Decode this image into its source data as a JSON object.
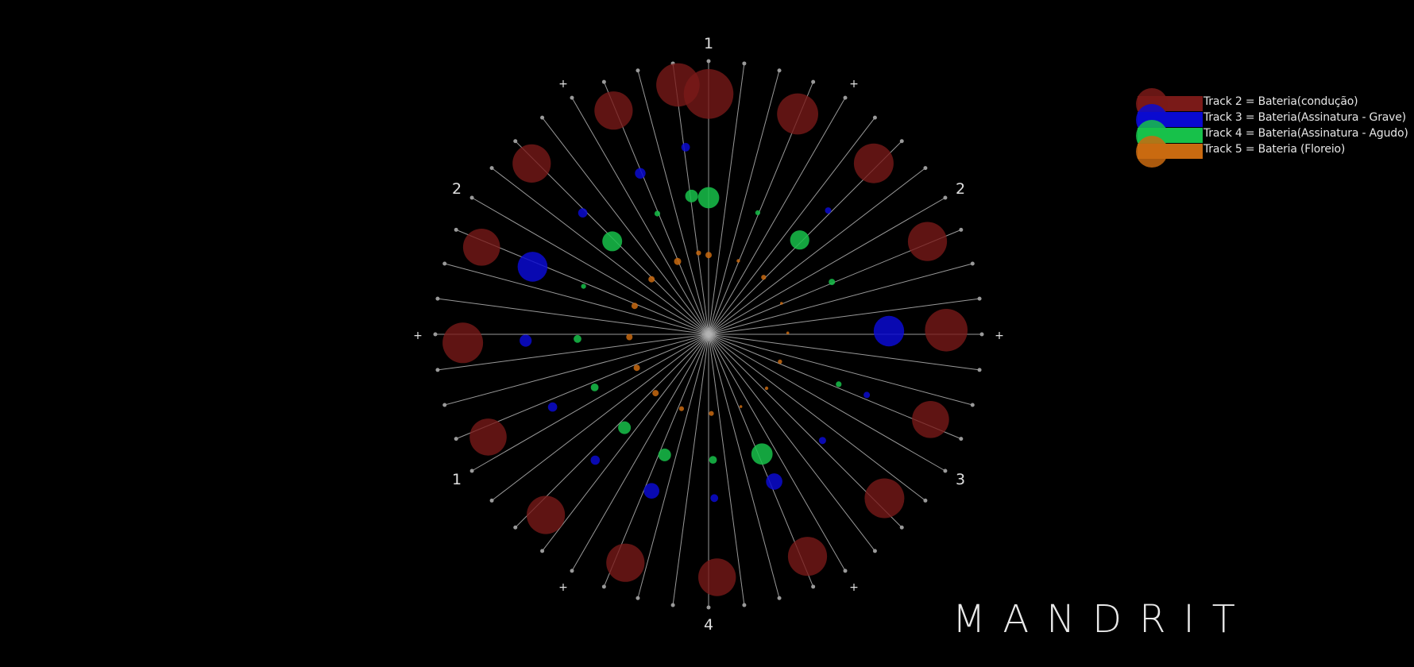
{
  "brand": "MANDRIT",
  "colors": {
    "background": "#000000",
    "spokes": "#b4b4b4",
    "track2": "#7a1a18",
    "track3": "#0a0ad0",
    "track4": "#17c14a",
    "track5": "#c96a10"
  },
  "legend": [
    {
      "label": "Track 2 = Bateria(condução)",
      "color": "#7a1a18"
    },
    {
      "label": "Track 3 = Bateria(Assinatura - Grave)",
      "color": "#0a0ad0"
    },
    {
      "label": "Track 4 = Bateria(Assinatura - Agudo)",
      "color": "#17c14a"
    },
    {
      "label": "Track 5 = Bateria (Floreio)",
      "color": "#c96a10"
    }
  ],
  "chart_data": {
    "type": "radial-bubble",
    "title": "",
    "spoke_count": 48,
    "beat_labels": [
      {
        "angle": 0,
        "text": "1"
      },
      {
        "angle": 30,
        "text": "+"
      },
      {
        "angle": 60,
        "text": "2"
      },
      {
        "angle": 90,
        "text": "+"
      },
      {
        "angle": 120,
        "text": "3"
      },
      {
        "angle": 150,
        "text": "+"
      },
      {
        "angle": 180,
        "text": "4"
      },
      {
        "angle": 210,
        "text": "+"
      },
      {
        "angle": 240,
        "text": "1"
      },
      {
        "angle": 270,
        "text": "+"
      },
      {
        "angle": 300,
        "text": "2"
      },
      {
        "angle": 330,
        "text": "+"
      }
    ],
    "series": [
      {
        "name": "Track 2 = Bateria(condução)",
        "color": "#7a1a18",
        "points": [
          {
            "angle": -7,
            "dist": 0.92,
            "size": 0.61
          },
          {
            "angle": 0,
            "dist": 0.88,
            "size": 0.7
          },
          {
            "angle": 22,
            "dist": 0.87,
            "size": 0.58
          },
          {
            "angle": 44,
            "dist": 0.87,
            "size": 0.56
          },
          {
            "angle": 67,
            "dist": 0.87,
            "size": 0.55
          },
          {
            "angle": 89,
            "dist": 0.87,
            "size": 0.6
          },
          {
            "angle": 111,
            "dist": 0.87,
            "size": 0.52
          },
          {
            "angle": 133,
            "dist": 0.88,
            "size": 0.56
          },
          {
            "angle": 156,
            "dist": 0.89,
            "size": 0.55
          },
          {
            "angle": 178,
            "dist": 0.89,
            "size": 0.53
          },
          {
            "angle": 200,
            "dist": 0.89,
            "size": 0.54
          },
          {
            "angle": 222,
            "dist": 0.89,
            "size": 0.54
          },
          {
            "angle": 245,
            "dist": 0.89,
            "size": 0.52
          },
          {
            "angle": 268,
            "dist": 0.9,
            "size": 0.57
          },
          {
            "angle": 291,
            "dist": 0.89,
            "size": 0.52
          },
          {
            "angle": 314,
            "dist": 0.9,
            "size": 0.54
          },
          {
            "angle": 337,
            "dist": 0.89,
            "size": 0.54
          }
        ]
      },
      {
        "name": "Track 3 = Bateria(Assinatura - Grave)",
        "color": "#0a0ad0",
        "points": [
          {
            "angle": -7,
            "dist": 0.69,
            "size": 0.12
          },
          {
            "angle": 44,
            "dist": 0.63,
            "size": 0.09
          },
          {
            "angle": 89,
            "dist": 0.66,
            "size": 0.43
          },
          {
            "angle": 111,
            "dist": 0.62,
            "size": 0.09
          },
          {
            "angle": 133,
            "dist": 0.57,
            "size": 0.1
          },
          {
            "angle": 156,
            "dist": 0.59,
            "size": 0.23
          },
          {
            "angle": 178,
            "dist": 0.6,
            "size": 0.11
          },
          {
            "angle": 200,
            "dist": 0.61,
            "size": 0.22
          },
          {
            "angle": 222,
            "dist": 0.62,
            "size": 0.13
          },
          {
            "angle": 245,
            "dist": 0.63,
            "size": 0.13
          },
          {
            "angle": 268,
            "dist": 0.67,
            "size": 0.17
          },
          {
            "angle": 291,
            "dist": 0.69,
            "size": 0.42
          },
          {
            "angle": 314,
            "dist": 0.64,
            "size": 0.13
          },
          {
            "angle": 337,
            "dist": 0.64,
            "size": 0.15
          }
        ]
      },
      {
        "name": "Track 4 = Bateria(Assinatura - Agudo)",
        "color": "#17c14a",
        "points": [
          {
            "angle": -7,
            "dist": 0.51,
            "size": 0.18
          },
          {
            "angle": 0,
            "dist": 0.5,
            "size": 0.3
          },
          {
            "angle": 22,
            "dist": 0.48,
            "size": 0.07
          },
          {
            "angle": 44,
            "dist": 0.48,
            "size": 0.27
          },
          {
            "angle": 67,
            "dist": 0.49,
            "size": 0.09
          },
          {
            "angle": 111,
            "dist": 0.51,
            "size": 0.08
          },
          {
            "angle": 156,
            "dist": 0.48,
            "size": 0.3
          },
          {
            "angle": 178,
            "dist": 0.46,
            "size": 0.11
          },
          {
            "angle": 200,
            "dist": 0.47,
            "size": 0.18
          },
          {
            "angle": 222,
            "dist": 0.46,
            "size": 0.18
          },
          {
            "angle": 245,
            "dist": 0.46,
            "size": 0.11
          },
          {
            "angle": 268,
            "dist": 0.48,
            "size": 0.11
          },
          {
            "angle": 291,
            "dist": 0.49,
            "size": 0.07
          },
          {
            "angle": 314,
            "dist": 0.49,
            "size": 0.28
          },
          {
            "angle": 337,
            "dist": 0.48,
            "size": 0.08
          }
        ]
      },
      {
        "name": "Track 5 = Bateria (Floreio)",
        "color": "#c96a10",
        "points": [
          {
            "angle": -7,
            "dist": 0.3,
            "size": 0.07
          },
          {
            "angle": 0,
            "dist": 0.29,
            "size": 0.09
          },
          {
            "angle": 22,
            "dist": 0.29,
            "size": 0.05
          },
          {
            "angle": 44,
            "dist": 0.29,
            "size": 0.07
          },
          {
            "angle": 67,
            "dist": 0.29,
            "size": 0.04
          },
          {
            "angle": 89,
            "dist": 0.29,
            "size": 0.04
          },
          {
            "angle": 111,
            "dist": 0.28,
            "size": 0.06
          },
          {
            "angle": 133,
            "dist": 0.29,
            "size": 0.05
          },
          {
            "angle": 156,
            "dist": 0.29,
            "size": 0.04
          },
          {
            "angle": 178,
            "dist": 0.29,
            "size": 0.07
          },
          {
            "angle": 200,
            "dist": 0.29,
            "size": 0.07
          },
          {
            "angle": 222,
            "dist": 0.29,
            "size": 0.09
          },
          {
            "angle": 245,
            "dist": 0.29,
            "size": 0.09
          },
          {
            "angle": 268,
            "dist": 0.29,
            "size": 0.09
          },
          {
            "angle": 291,
            "dist": 0.29,
            "size": 0.09
          },
          {
            "angle": 314,
            "dist": 0.29,
            "size": 0.09
          },
          {
            "angle": 337,
            "dist": 0.29,
            "size": 0.1
          }
        ]
      }
    ]
  }
}
